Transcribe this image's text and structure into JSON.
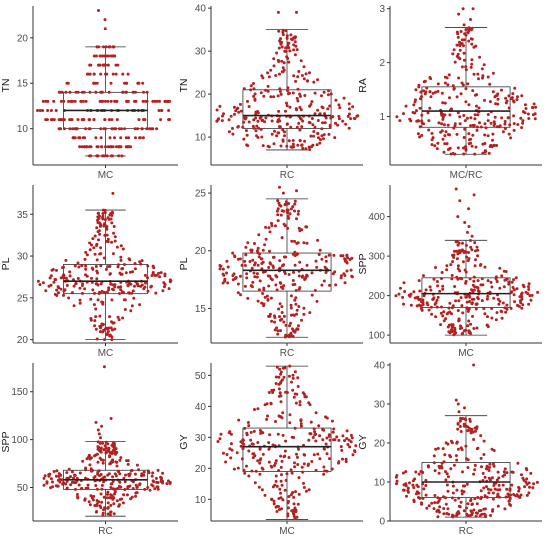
{
  "chart_data": [
    {
      "type": "boxplot-beeswarm",
      "xlabel": "MC",
      "ylabel": "TN",
      "ylim": [
        6,
        23.5
      ],
      "yticks": [
        10,
        15,
        20
      ],
      "box": {
        "min": 7,
        "q1": 10,
        "median": 12,
        "q3": 14,
        "max": 19
      },
      "outliers": [
        21,
        22,
        23
      ],
      "n": 300,
      "discrete": true,
      "point_color": "#b22222"
    },
    {
      "type": "boxplot-beeswarm",
      "xlabel": "RC",
      "ylabel": "TN",
      "ylim": [
        3.5,
        40.5
      ],
      "yticks": [
        10,
        20,
        30,
        40
      ],
      "box": {
        "min": 7,
        "q1": 12,
        "median": 15,
        "q3": 21,
        "max": 35
      },
      "outliers": [
        39,
        39
      ],
      "n": 300,
      "discrete": false,
      "point_color": "#b22222"
    },
    {
      "type": "boxplot-beeswarm",
      "xlabel": "MC/RC",
      "ylabel": "RA",
      "ylim": [
        0.1,
        3.05
      ],
      "yticks": [
        1,
        2,
        3
      ],
      "box": {
        "min": 0.3,
        "q1": 0.8,
        "median": 1.1,
        "q3": 1.55,
        "max": 2.65
      },
      "outliers": [
        2.7,
        2.8,
        2.9,
        3.0,
        3.0
      ],
      "n": 300,
      "discrete": false,
      "point_color": "#b22222"
    },
    {
      "type": "boxplot-beeswarm",
      "xlabel": "MC",
      "ylabel": "PL",
      "ylim": [
        19.6,
        38.5
      ],
      "yticks": [
        20,
        25,
        30,
        35
      ],
      "box": {
        "min": 20,
        "q1": 25.5,
        "median": 27,
        "q3": 29,
        "max": 35.5
      },
      "outliers": [
        37.5
      ],
      "n": 300,
      "discrete": false,
      "point_color": "#b22222"
    },
    {
      "type": "boxplot-beeswarm",
      "xlabel": "RC",
      "ylabel": "PL",
      "ylim": [
        12,
        25.7
      ],
      "yticks": [
        15,
        20,
        25
      ],
      "box": {
        "min": 12.5,
        "q1": 16.5,
        "median": 18.3,
        "q3": 19.8,
        "max": 24.5
      },
      "outliers": [
        25.0,
        25.2,
        25.5
      ],
      "n": 300,
      "discrete": false,
      "point_color": "#b22222"
    },
    {
      "type": "boxplot-beeswarm",
      "xlabel": "MC",
      "ylabel": "SPP",
      "ylim": [
        80,
        480
      ],
      "yticks": [
        100,
        200,
        300,
        400
      ],
      "box": {
        "min": 100,
        "q1": 170,
        "median": 205,
        "q3": 245,
        "max": 340
      },
      "outliers": [
        350,
        360,
        375,
        385,
        400,
        420,
        440,
        455,
        470
      ],
      "n": 300,
      "discrete": false,
      "point_color": "#b22222"
    },
    {
      "type": "boxplot-beeswarm",
      "xlabel": "RC",
      "ylabel": "SPP",
      "ylim": [
        15,
        180
      ],
      "yticks": [
        50,
        100,
        150
      ],
      "box": {
        "min": 20,
        "q1": 48,
        "median": 58,
        "q3": 68,
        "max": 98
      },
      "outliers": [
        102,
        106,
        110,
        114,
        118,
        122,
        176
      ],
      "n": 300,
      "discrete": false,
      "point_color": "#b22222"
    },
    {
      "type": "boxplot-beeswarm",
      "xlabel": "MC",
      "ylabel": "GY",
      "ylim": [
        3,
        54
      ],
      "yticks": [
        10,
        20,
        30,
        40,
        50
      ],
      "box": {
        "min": 3.5,
        "q1": 19,
        "median": 27,
        "q3": 33,
        "max": 53
      },
      "outliers": [],
      "n": 300,
      "discrete": false,
      "point_color": "#b22222"
    },
    {
      "type": "boxplot-beeswarm",
      "xlabel": "RC",
      "ylabel": "GY",
      "ylim": [
        0,
        40.5
      ],
      "yticks": [
        0,
        10,
        20,
        30,
        40
      ],
      "box": {
        "min": 1,
        "q1": 6,
        "median": 10,
        "q3": 15,
        "max": 27
      },
      "outliers": [
        28,
        29,
        30,
        31,
        40
      ],
      "n": 300,
      "discrete": false,
      "point_color": "#b22222"
    }
  ]
}
